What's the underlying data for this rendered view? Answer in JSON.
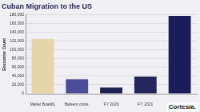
{
  "chart_data": {
    "type": "bar",
    "title": "Cuban Migration to the US",
    "y_label": "Encounter Count",
    "categories": [
      "Mariel Boatlift,",
      "Balsero crisis,",
      "FY 2020",
      "FY 2021",
      null
    ],
    "values": [
      125000,
      33000,
      14000,
      39000,
      178000
    ],
    "colors": [
      "#e6d5a8",
      "#4a4d98",
      "#1e1f52",
      "#23255c",
      "#1b1c5c"
    ],
    "ylim": [
      0,
      180000
    ],
    "yticks": [
      0,
      {
        "value": 20000,
        "label": "20,000"
      },
      {
        "value": 40000,
        "label": "40,000"
      },
      {
        "value": 60000,
        "label": "60,000"
      },
      {
        "value": 80000,
        "label": "80,000"
      },
      {
        "value": 100000,
        "label": "100,000"
      },
      {
        "value": 120000,
        "label": "120,000"
      },
      {
        "value": 140000,
        "label": "140,000"
      },
      {
        "value": 160000,
        "label": "160,000"
      },
      {
        "value": 180000,
        "label": "180,000"
      }
    ],
    "grid": true,
    "annotation": "Cortesía."
  }
}
